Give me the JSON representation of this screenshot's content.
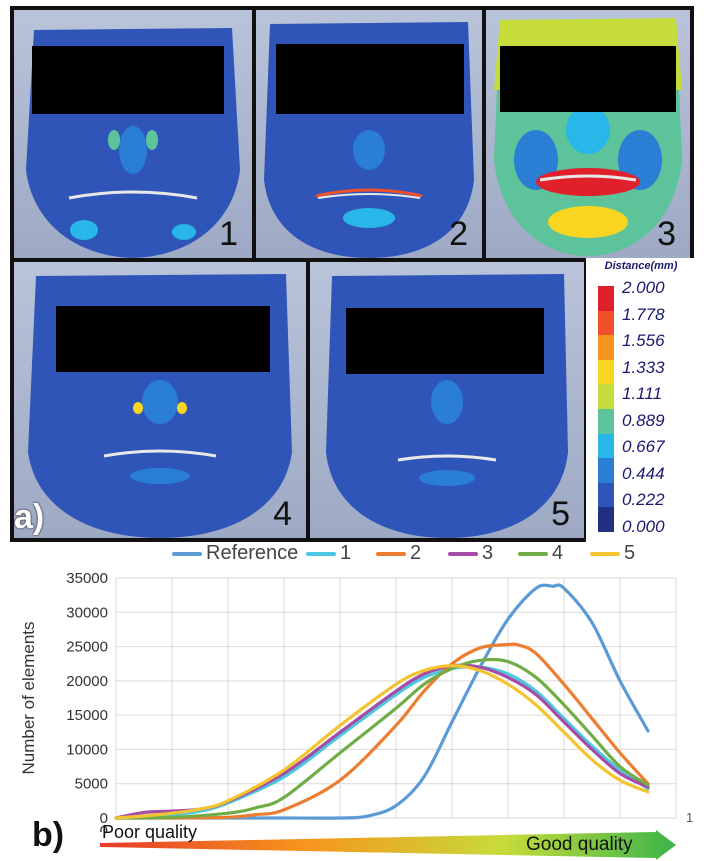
{
  "faces": [
    {
      "label": "1"
    },
    {
      "label": "2"
    },
    {
      "label": "3"
    },
    {
      "label": "4"
    },
    {
      "label": "5"
    }
  ],
  "panel_a_label": "a)",
  "panel_b_label": "b)",
  "color_scale": {
    "title": "Distance(mm)",
    "values": [
      "2.000",
      "1.778",
      "1.556",
      "1.333",
      "1.111",
      "0.889",
      "0.667",
      "0.444",
      "0.222",
      "0.000"
    ],
    "colors": [
      "#e0202a",
      "#f0502a",
      "#f7941d",
      "#f9d51f",
      "#c6dc3a",
      "#5cc39a",
      "#29b6e8",
      "#2a7fd4",
      "#2f55b8",
      "#23307f"
    ]
  },
  "arrow_left_label": "Poor quality",
  "arrow_right_label": "Good quality",
  "chart_data": {
    "type": "line",
    "xlabel": "",
    "ylabel": "Number of elements",
    "ylim": [
      0,
      35000
    ],
    "yticks": [
      0,
      5000,
      10000,
      15000,
      20000,
      25000,
      30000,
      35000
    ],
    "xlim": [
      0,
      1
    ],
    "xtick_labels": [
      "0",
      "1"
    ],
    "grid": true,
    "legend_position": "top",
    "series": [
      {
        "name": "Reference",
        "color": "#5b9bd5",
        "x": [
          0,
          0.1,
          0.2,
          0.3,
          0.4,
          0.45,
          0.5,
          0.55,
          0.6,
          0.65,
          0.7,
          0.75,
          0.78,
          0.8,
          0.85,
          0.9,
          0.95
        ],
        "y": [
          0,
          0,
          0,
          0,
          0,
          300,
          1800,
          6000,
          14000,
          22000,
          29000,
          33500,
          33800,
          33500,
          28500,
          20000,
          12700
        ]
      },
      {
        "name": "1",
        "color": "#4bc8e0",
        "x": [
          0,
          0.05,
          0.1,
          0.15,
          0.2,
          0.3,
          0.4,
          0.5,
          0.55,
          0.6,
          0.65,
          0.7,
          0.75,
          0.8,
          0.85,
          0.9,
          0.95
        ],
        "y": [
          0,
          200,
          500,
          1000,
          2200,
          6000,
          12000,
          18000,
          20500,
          21800,
          22000,
          21000,
          18500,
          14500,
          10500,
          7000,
          4300
        ]
      },
      {
        "name": "2",
        "color": "#ed7d31",
        "x": [
          0,
          0.1,
          0.2,
          0.25,
          0.3,
          0.4,
          0.5,
          0.55,
          0.6,
          0.65,
          0.7,
          0.72,
          0.75,
          0.8,
          0.85,
          0.9,
          0.95
        ],
        "y": [
          0,
          0,
          100,
          500,
          1200,
          5500,
          13500,
          18500,
          22500,
          24800,
          25300,
          25200,
          24000,
          19500,
          14500,
          9500,
          5000
        ]
      },
      {
        "name": "3",
        "color": "#a64ca6",
        "x": [
          0,
          0.05,
          0.1,
          0.15,
          0.2,
          0.3,
          0.4,
          0.5,
          0.55,
          0.6,
          0.65,
          0.7,
          0.75,
          0.8,
          0.85,
          0.9,
          0.95
        ],
        "y": [
          0,
          800,
          1000,
          1300,
          2400,
          6500,
          12500,
          18500,
          21000,
          22200,
          22000,
          20500,
          18000,
          14000,
          10000,
          6500,
          4500
        ]
      },
      {
        "name": "4",
        "color": "#70ad47",
        "x": [
          0,
          0.1,
          0.2,
          0.25,
          0.3,
          0.4,
          0.5,
          0.55,
          0.6,
          0.65,
          0.7,
          0.75,
          0.8,
          0.85,
          0.9,
          0.95
        ],
        "y": [
          0,
          100,
          700,
          1500,
          3000,
          9500,
          16000,
          19500,
          21800,
          23000,
          22800,
          20500,
          16500,
          12000,
          7500,
          4800
        ]
      },
      {
        "name": "5",
        "color": "#f4c430",
        "x": [
          0,
          0.05,
          0.1,
          0.15,
          0.2,
          0.3,
          0.4,
          0.5,
          0.55,
          0.6,
          0.65,
          0.7,
          0.75,
          0.8,
          0.85,
          0.9,
          0.95
        ],
        "y": [
          0,
          300,
          700,
          1300,
          2500,
          7000,
          13500,
          19500,
          21500,
          22200,
          21500,
          19500,
          16500,
          12500,
          8500,
          5500,
          3800
        ]
      }
    ]
  }
}
